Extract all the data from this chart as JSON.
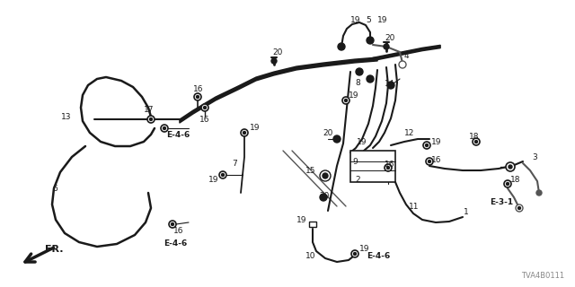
{
  "background_color": "#ffffff",
  "diagram_color": "#1a1a1a",
  "gray_color": "#888888",
  "fig_width": 6.4,
  "fig_height": 3.2,
  "watermark": "TVA4B0111"
}
